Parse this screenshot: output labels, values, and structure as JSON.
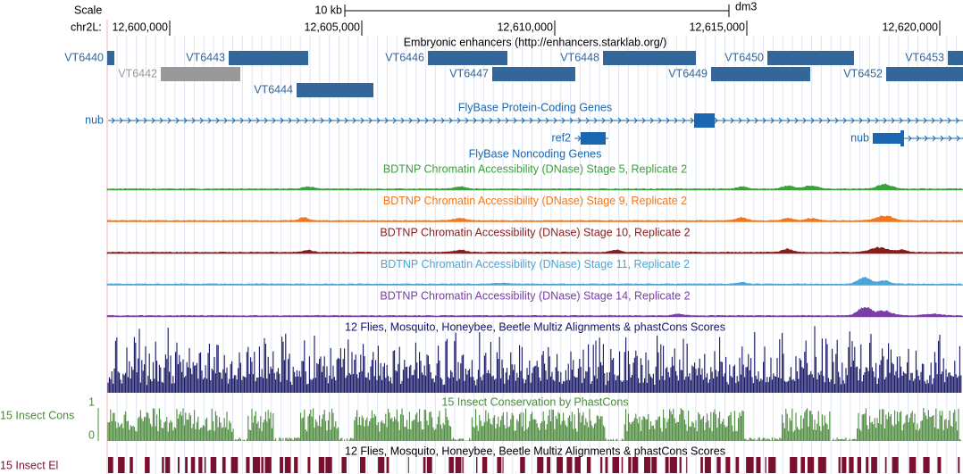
{
  "header": {
    "scale_label": "Scale",
    "scale_length": "10 kb",
    "assembly": "dm3",
    "chromosome": "chr2L:",
    "positions": [
      "12,600,000",
      "12,605,000",
      "12,610,000",
      "12,615,000",
      "12,620,000"
    ]
  },
  "enhancers": {
    "title": "Embryonic enhancers (http://enhancers.starklab.org/)",
    "labels": [
      "VT6440",
      "VT6443",
      "VT6446",
      "VT6448",
      "VT6450",
      "VT6453",
      "VT6442",
      "VT6447",
      "VT6449",
      "VT6452",
      "VT6444"
    ]
  },
  "protein_coding_genes": {
    "title": "FlyBase Protein-Coding Genes",
    "genes": [
      "nub",
      "ref2",
      "nub"
    ]
  },
  "noncoding_genes": {
    "title": "FlyBase Noncoding Genes"
  },
  "dnase_tracks": [
    {
      "title": "BDTNP Chromatin Accessibility (DNase) Stage 5, Replicate 2",
      "color": "#3ca03c"
    },
    {
      "title": "BDTNP Chromatin Accessibility (DNase) Stage 9, Replicate 2",
      "color": "#f07820"
    },
    {
      "title": "BDTNP Chromatin Accessibility (DNase) Stage 10, Replicate 2",
      "color": "#8c1c1c"
    },
    {
      "title": "BDTNP Chromatin Accessibility (DNase) Stage 11, Replicate 2",
      "color": "#4aa6d6"
    },
    {
      "title": "BDTNP Chromatin Accessibility (DNase) Stage 14, Replicate 2",
      "color": "#7a3ea6"
    }
  ],
  "multiz": {
    "title": "12 Flies, Mosquito, Honeybee, Beetle Multiz Alignments & phastCons Scores"
  },
  "phastcons": {
    "title": "15 Insect Conservation by PhastCons",
    "label": "15 Insect Cons",
    "axis_max": "1",
    "axis_min": "0"
  },
  "multiz_2": {
    "title": "12 Flies, Mosquito, Honeybee, Beetle Multiz Alignments & phastCons Scores"
  },
  "elements": {
    "label": "15 Insect El"
  }
}
